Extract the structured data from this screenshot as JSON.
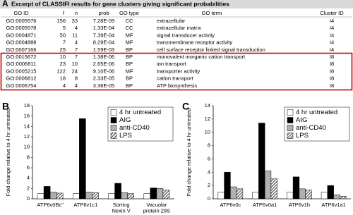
{
  "panel_a": {
    "label": "A",
    "title": "Excerpt of CLASSIFI results for gene clusters giving significant probabilities",
    "columns": [
      "GO ID",
      "f",
      "n",
      "prob",
      "GO type",
      "GO term",
      "Cluster ID"
    ],
    "rows": [
      [
        "GO:0005576",
        "156",
        "33",
        "7.28E-09",
        "CC",
        "extracellular",
        "I4"
      ],
      [
        "GO:0005578",
        "5",
        "4",
        "1.33E-04",
        "CC",
        "extracellular matrix",
        "I4"
      ],
      [
        "GO:0004871",
        "50",
        "11",
        "7.39E-04",
        "MF",
        "signal transducer activity",
        "I4"
      ],
      [
        "GO:0004888",
        "7",
        "4",
        "8.29E-04",
        "MF",
        "transmembrane receptor activity",
        "I4"
      ],
      [
        "GO:0007166",
        "25",
        "7",
        "1.59E-03",
        "BP",
        "cell surface receptor linked signal transduction",
        "I4"
      ],
      [
        "GO:0015672",
        "10",
        "7",
        "1.38E-06",
        "BP",
        "monovalent inorganic cation transport",
        "I8"
      ],
      [
        "GO:0006811",
        "23",
        "10",
        "2.65E-06",
        "BP",
        "ion transport",
        "I8"
      ],
      [
        "GO:0005215",
        "122",
        "24",
        "9.10E-06",
        "MF",
        "transporter activity",
        "I8"
      ],
      [
        "GO:0006812",
        "18",
        "8",
        "2.33E-05",
        "BP",
        "cation transport",
        "I8"
      ],
      [
        "GO:0006754",
        "4",
        "4",
        "3.36E-05",
        "BP",
        "ATP biosynthesis",
        "I8"
      ]
    ]
  },
  "chart_data": [
    {
      "type": "bar",
      "panel": "B",
      "y_label": "Fold change relative to 4 hr untreated",
      "categories": [
        "ATP6v0Bc\"",
        "ATP6v1c1",
        "Sorting Nexin V",
        "Vacuolar protein 29S"
      ],
      "series": [
        {
          "name": "4 hr untreated",
          "color": "#ffffff",
          "values": [
            1,
            1,
            1,
            1
          ]
        },
        {
          "name": "AIG",
          "color": "#000000",
          "values": [
            2.4,
            15.5,
            3.0,
            2.1
          ]
        },
        {
          "name": "anti-CD40",
          "color": "#b0b0b0",
          "values": [
            1.3,
            1.3,
            1.2,
            2.0
          ]
        },
        {
          "name": "LPS",
          "color": "#ffffff",
          "hatch": true,
          "values": [
            1.1,
            1.2,
            1.0,
            1.7
          ]
        }
      ],
      "ylim": [
        0,
        18
      ],
      "yticks": [
        0,
        2,
        4,
        6,
        8,
        10,
        12,
        14,
        16,
        18
      ],
      "legend": "upper right"
    },
    {
      "type": "bar",
      "panel": "C",
      "y_label": "Fold change relative to 4 hr untreated",
      "categories": [
        "ATP6v0c",
        "ATP6v0a1",
        "ATP6v1h",
        "ATP6v1a1"
      ],
      "series": [
        {
          "name": "4 hr untreated",
          "color": "#ffffff",
          "values": [
            1,
            1,
            1,
            1
          ]
        },
        {
          "name": "AIG",
          "color": "#000000",
          "values": [
            4.0,
            11.4,
            3.3,
            2.0
          ]
        },
        {
          "name": "anti-CD40",
          "color": "#b0b0b0",
          "values": [
            1.8,
            4.2,
            1.5,
            0.6
          ]
        },
        {
          "name": "LPS",
          "color": "#ffffff",
          "hatch": true,
          "values": [
            1.5,
            3.0,
            1.3,
            0.4
          ]
        }
      ],
      "ylim": [
        0,
        14
      ],
      "yticks": [
        0,
        2,
        4,
        6,
        8,
        10,
        12,
        14
      ],
      "legend": "upper right"
    }
  ]
}
